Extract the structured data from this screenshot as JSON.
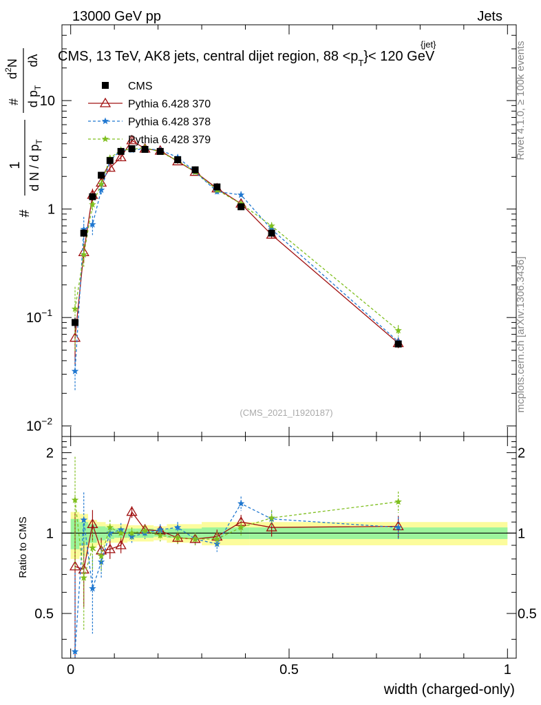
{
  "header": {
    "left": "13000 GeV pp",
    "right": "Jets"
  },
  "chart_data": {
    "type": "line",
    "title": "CMS, 13 TeV, AK8 jets, central dijet region, 88 <p",
    "title_sup": "{jet}",
    "title_sub": "T",
    "title_end": "}< 120 GeV",
    "analysis_id": "(CMS_2021_I1920187)",
    "side_top": "Rivet 4.1.0, ≥ 100k events",
    "side_bottom": "mcplots.cern.ch [arXiv:1306.3436]",
    "xlabel": "width (charged-only)",
    "ylabel_parts": [
      "#",
      "1",
      "d N / d p",
      "T",
      "#",
      "d",
      "2",
      "N",
      "d p",
      "T",
      "dλ"
    ],
    "ratio_ylabel": "Ratio to CMS",
    "xlim": [
      -0.02,
      1.02
    ],
    "ylim": [
      0.008,
      50
    ],
    "ratio_ylim": [
      0.34,
      2.3
    ],
    "x_ticks": [
      0,
      0.5,
      1
    ],
    "x_tick_labels": [
      "0",
      "0.5",
      "1"
    ],
    "y_ticks": [
      0.01,
      0.1,
      1,
      10
    ],
    "y_tick_labels": [
      {
        "base": "10",
        "exp": "−2"
      },
      {
        "base": "10",
        "exp": "−1"
      },
      {
        "base": "1",
        "exp": ""
      },
      {
        "base": "10",
        "exp": ""
      }
    ],
    "ratio_y_ticks": [
      0.5,
      1,
      2
    ],
    "ratio_y_tick_labels": [
      "0.5",
      "1",
      "2"
    ],
    "x": [
      0.01,
      0.03,
      0.05,
      0.07,
      0.09,
      0.115,
      0.14,
      0.17,
      0.205,
      0.245,
      0.285,
      0.335,
      0.39,
      0.46,
      0.75
    ],
    "bin_edges": [
      0,
      0.02,
      0.04,
      0.06,
      0.08,
      0.1,
      0.13,
      0.15,
      0.19,
      0.22,
      0.27,
      0.3,
      0.37,
      0.41,
      0.5,
      1.0
    ],
    "band_inner": [
      0.13,
      0.1,
      0.08,
      0.06,
      0.05,
      0.04,
      0.04,
      0.04,
      0.03,
      0.04,
      0.04,
      0.05,
      0.05,
      0.05,
      0.05
    ],
    "band_outer": [
      0.2,
      0.18,
      0.12,
      0.1,
      0.08,
      0.08,
      0.07,
      0.07,
      0.06,
      0.08,
      0.08,
      0.1,
      0.1,
      0.1,
      0.1
    ],
    "series": [
      {
        "name": "CMS",
        "color": "#000000",
        "marker": "square",
        "line": "none",
        "values": [
          0.09,
          0.6,
          1.3,
          2.05,
          2.8,
          3.4,
          3.6,
          3.55,
          3.4,
          2.85,
          2.3,
          1.6,
          1.05,
          0.6,
          0.057
        ],
        "errors": [
          0.01,
          0.05,
          0.08,
          0.1,
          0.12,
          0.12,
          0.12,
          0.12,
          0.1,
          0.1,
          0.1,
          0.08,
          0.06,
          0.03,
          0.004
        ],
        "ratio": [
          1,
          1,
          1,
          1,
          1,
          1,
          1,
          1,
          1,
          1,
          1,
          1,
          1,
          1,
          1
        ]
      },
      {
        "name": "Pythia 6.428 370",
        "color": "#a01010",
        "marker": "triangle",
        "line": "solid",
        "values": [
          0.065,
          0.4,
          1.35,
          1.75,
          2.4,
          3.0,
          4.3,
          3.6,
          3.45,
          2.75,
          2.2,
          1.55,
          1.12,
          0.58,
          0.058
        ],
        "ratio": [
          0.75,
          0.73,
          1.08,
          0.86,
          0.87,
          0.9,
          1.2,
          1.03,
          1.02,
          0.96,
          0.95,
          0.97,
          1.1,
          1.05,
          1.06
        ],
        "ratio_err": [
          0.45,
          0.2,
          0.14,
          0.1,
          0.07,
          0.06,
          0.06,
          0.05,
          0.05,
          0.05,
          0.05,
          0.06,
          0.07,
          0.08,
          0.1
        ]
      },
      {
        "name": "Pythia 6.428 378",
        "color": "#1f77d0",
        "marker": "star",
        "line": "dashed",
        "values": [
          0.032,
          0.65,
          0.72,
          1.5,
          2.8,
          3.5,
          3.5,
          3.6,
          3.5,
          3.0,
          2.2,
          1.45,
          1.35,
          0.65,
          0.06
        ],
        "ratio": [
          0.36,
          1.12,
          0.62,
          0.78,
          1.0,
          1.03,
          0.97,
          1.0,
          1.03,
          1.05,
          0.95,
          0.91,
          1.29,
          1.13,
          1.05
        ],
        "ratio_err": [
          0.35,
          0.3,
          0.2,
          0.1,
          0.07,
          0.06,
          0.05,
          0.05,
          0.05,
          0.05,
          0.05,
          0.06,
          0.08,
          0.08,
          0.1
        ]
      },
      {
        "name": "Pythia 6.428 379",
        "color": "#7fbf1f",
        "marker": "star",
        "line": "dashed",
        "values": [
          0.12,
          0.38,
          1.1,
          1.7,
          2.95,
          3.5,
          3.55,
          3.7,
          3.35,
          2.8,
          2.2,
          1.5,
          1.12,
          0.7,
          0.076
        ],
        "ratio": [
          1.33,
          0.68,
          0.88,
          0.82,
          1.05,
          1.0,
          1.0,
          1.02,
          0.98,
          0.96,
          0.95,
          0.95,
          1.05,
          1.14,
          1.31
        ],
        "ratio_err": [
          0.6,
          0.25,
          0.15,
          0.1,
          0.07,
          0.06,
          0.05,
          0.05,
          0.05,
          0.05,
          0.05,
          0.06,
          0.07,
          0.08,
          0.12
        ]
      }
    ]
  }
}
